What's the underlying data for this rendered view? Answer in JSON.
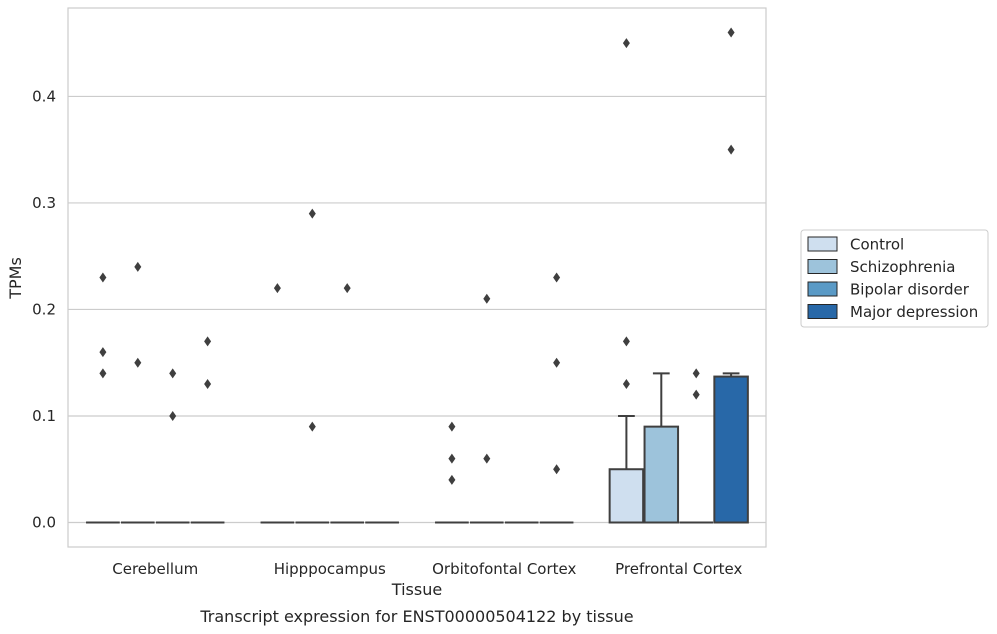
{
  "chart_data": {
    "type": "box",
    "xlabel": "Tissue",
    "ylabel": "TPMs",
    "caption": "Transcript expression for ENST00000504122 by tissue",
    "categories": [
      "Cerebellum",
      "Hipppocampus",
      "Orbitofontal Cortex",
      "Prefrontal Cortex"
    ],
    "ylim": [
      -0.023,
      0.483
    ],
    "yticks": [
      0.0,
      0.1,
      0.2,
      0.3,
      0.4
    ],
    "ytick_labels": [
      "0.0",
      "0.1",
      "0.2",
      "0.3",
      "0.4"
    ],
    "grid": true,
    "legend_position": "right",
    "series": [
      {
        "name": "Control",
        "color": "#cfdfef",
        "boxes": [
          {
            "q1": 0,
            "median": 0,
            "q3": 0,
            "whisker_low": 0,
            "whisker_high": 0,
            "outliers": [
              0.23,
              0.16,
              0.14
            ]
          },
          {
            "q1": 0,
            "median": 0,
            "q3": 0,
            "whisker_low": 0,
            "whisker_high": 0,
            "outliers": [
              0.22
            ]
          },
          {
            "q1": 0,
            "median": 0,
            "q3": 0,
            "whisker_low": 0,
            "whisker_high": 0,
            "outliers": [
              0.09,
              0.06,
              0.04
            ]
          },
          {
            "q1": 0,
            "median": 0,
            "q3": 0.05,
            "whisker_low": 0,
            "whisker_high": 0.1,
            "outliers": [
              0.45,
              0.17,
              0.13
            ]
          }
        ]
      },
      {
        "name": "Schizophrenia",
        "color": "#9dc3db",
        "boxes": [
          {
            "q1": 0,
            "median": 0,
            "q3": 0,
            "whisker_low": 0,
            "whisker_high": 0,
            "outliers": [
              0.24,
              0.15
            ]
          },
          {
            "q1": 0,
            "median": 0,
            "q3": 0,
            "whisker_low": 0,
            "whisker_high": 0,
            "outliers": [
              0.29,
              0.09
            ]
          },
          {
            "q1": 0,
            "median": 0,
            "q3": 0,
            "whisker_low": 0,
            "whisker_high": 0,
            "outliers": [
              0.21,
              0.06
            ]
          },
          {
            "q1": 0,
            "median": 0,
            "q3": 0.09,
            "whisker_low": 0,
            "whisker_high": 0.14,
            "outliers": []
          }
        ]
      },
      {
        "name": "Bipolar disorder",
        "color": "#5a9ac6",
        "boxes": [
          {
            "q1": 0,
            "median": 0,
            "q3": 0,
            "whisker_low": 0,
            "whisker_high": 0,
            "outliers": [
              0.14,
              0.1
            ]
          },
          {
            "q1": 0,
            "median": 0,
            "q3": 0,
            "whisker_low": 0,
            "whisker_high": 0,
            "outliers": [
              0.22
            ]
          },
          {
            "q1": 0,
            "median": 0,
            "q3": 0,
            "whisker_low": 0,
            "whisker_high": 0,
            "outliers": []
          },
          {
            "q1": 0,
            "median": 0,
            "q3": 0,
            "whisker_low": 0,
            "whisker_high": 0,
            "outliers": [
              0.14,
              0.12
            ]
          }
        ]
      },
      {
        "name": "Major depression",
        "color": "#2868a8",
        "boxes": [
          {
            "q1": 0,
            "median": 0,
            "q3": 0,
            "whisker_low": 0,
            "whisker_high": 0,
            "outliers": [
              0.17,
              0.13
            ]
          },
          {
            "q1": 0,
            "median": 0,
            "q3": 0,
            "whisker_low": 0,
            "whisker_high": 0,
            "outliers": []
          },
          {
            "q1": 0,
            "median": 0,
            "q3": 0,
            "whisker_low": 0,
            "whisker_high": 0,
            "outliers": [
              0.23,
              0.15,
              0.05
            ]
          },
          {
            "q1": 0,
            "median": 0,
            "q3": 0.137,
            "whisker_low": 0,
            "whisker_high": 0.14,
            "outliers": [
              0.46,
              0.35
            ]
          }
        ]
      }
    ]
  }
}
